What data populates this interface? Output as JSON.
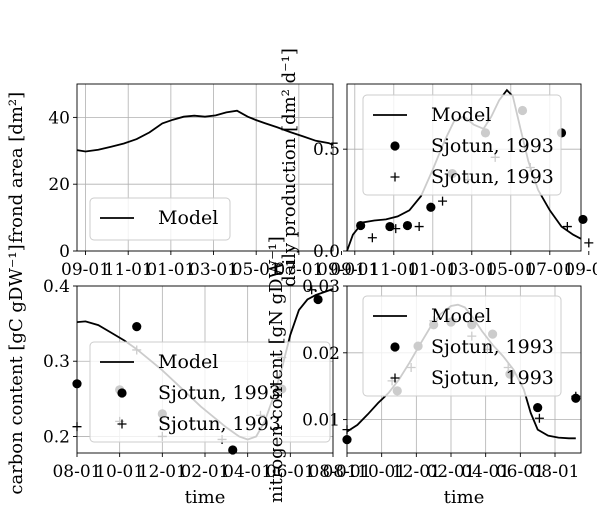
{
  "chart_data": [
    {
      "type": "line",
      "ylabel": "frond area [dm²]",
      "xlabel": "",
      "ylim": [
        0,
        50
      ],
      "yticks": [
        "0",
        "20",
        "40"
      ],
      "yticks_values": [
        0,
        20,
        40
      ],
      "xticks": [
        "09-01",
        "11-01",
        "01-01",
        "03-01",
        "05-01",
        "07-01",
        "09-01"
      ],
      "xlim": [
        0,
        12
      ],
      "xticks_values": [
        0.4,
        2.4,
        4.4,
        6.4,
        8.4,
        10.4,
        12.4
      ],
      "grid": true,
      "legend": {
        "placement": "lower-left",
        "entries": [
          "Model"
        ]
      },
      "series": [
        {
          "name": "Model",
          "style": "line",
          "x": [
            0,
            0.4,
            1,
            1.6,
            2.2,
            2.8,
            3.4,
            4,
            4.5,
            5,
            5.5,
            6,
            6.5,
            7,
            7.5,
            8,
            8.4,
            8.8,
            9.4,
            10,
            10.6,
            11.2,
            11.8,
            12
          ],
          "y": [
            30.2,
            29.8,
            30.3,
            31.2,
            32.2,
            33.5,
            35.5,
            38.2,
            39.3,
            40.2,
            40.5,
            40.2,
            40.6,
            41.5,
            42.0,
            40.2,
            39.2,
            38.3,
            37.0,
            35.6,
            34.3,
            33.0,
            32.3,
            31.8
          ]
        }
      ]
    },
    {
      "type": "scatter",
      "ylabel": "daily production [dm² d⁻¹]",
      "xlabel": "",
      "ylim": [
        0,
        0.82
      ],
      "yticks": [
        "0.0",
        "0.5"
      ],
      "yticks_values": [
        0,
        0.5
      ],
      "xticks": [
        "09-01",
        "11-01",
        "01-01",
        "03-01",
        "05-01",
        "07-01",
        "09-01"
      ],
      "xlim": [
        0,
        12
      ],
      "xticks_values": [
        0.4,
        2.4,
        4.4,
        6.4,
        8.4,
        10.4,
        12.4
      ],
      "grid": true,
      "legend": {
        "placement": "upper-left",
        "entries": [
          "Model",
          "Sjotun, 1993",
          "Sjotun, 1993"
        ]
      },
      "series": [
        {
          "name": "Model",
          "style": "line",
          "x": [
            0,
            0.3,
            0.8,
            1.4,
            2,
            2.6,
            3.2,
            3.8,
            4.4,
            5,
            5.5,
            6,
            6.5,
            7,
            7.4,
            7.8,
            8.2,
            8.5,
            8.9,
            9.3,
            9.8,
            10.4,
            11,
            11.6,
            12
          ],
          "y": [
            0.0,
            0.08,
            0.14,
            0.15,
            0.155,
            0.17,
            0.2,
            0.27,
            0.4,
            0.54,
            0.64,
            0.66,
            0.62,
            0.6,
            0.66,
            0.74,
            0.79,
            0.76,
            0.6,
            0.44,
            0.3,
            0.2,
            0.12,
            0.08,
            0.06
          ]
        },
        {
          "name": "Sjotun, 1993",
          "style": "dot",
          "x": [
            0.7,
            2.2,
            3.1,
            4.3,
            5.4,
            7.1,
            9.0,
            11.0,
            12.1
          ],
          "y": [
            0.125,
            0.12,
            0.125,
            0.215,
            0.38,
            0.58,
            0.69,
            0.58,
            0.155
          ]
        },
        {
          "name": "Sjotun, 1993",
          "style": "plus",
          "x": [
            1.3,
            2.5,
            3.7,
            4.9,
            6.2,
            7.6,
            9.4,
            11.3,
            12.4
          ],
          "y": [
            0.065,
            0.11,
            0.12,
            0.245,
            0.35,
            0.46,
            0.41,
            0.12,
            0.04
          ]
        }
      ]
    },
    {
      "type": "scatter",
      "ylabel": "carbon content [gC gDW⁻¹]",
      "xlabel": "time",
      "ylim": [
        0.178,
        0.4
      ],
      "yticks": [
        "0.2",
        "0.3",
        "0.4"
      ],
      "yticks_values": [
        0.2,
        0.3,
        0.4
      ],
      "xticks": [
        "08-01",
        "10-01",
        "12-01",
        "02-01",
        "04-01",
        "06-01",
        "08-01"
      ],
      "xlim": [
        0,
        12
      ],
      "xticks_values": [
        0,
        2,
        4,
        6,
        8,
        10,
        12
      ],
      "grid": true,
      "legend": {
        "placement": "center-right",
        "entries": [
          "Model",
          "Sjotun, 1993",
          "Sjotun, 1993"
        ]
      },
      "series": [
        {
          "name": "Model",
          "style": "line",
          "x": [
            0,
            0.4,
            1,
            1.6,
            2.2,
            2.8,
            3.4,
            4,
            4.6,
            5.2,
            5.8,
            6.4,
            7,
            7.6,
            8,
            8.4,
            8.8,
            9.2,
            9.6,
            10,
            10.4,
            10.8,
            11.2,
            11.6,
            12
          ],
          "y": [
            0.352,
            0.353,
            0.348,
            0.338,
            0.328,
            0.316,
            0.302,
            0.288,
            0.272,
            0.256,
            0.24,
            0.226,
            0.212,
            0.2,
            0.196,
            0.2,
            0.22,
            0.252,
            0.29,
            0.335,
            0.368,
            0.382,
            0.388,
            0.392,
            0.396
          ]
        },
        {
          "name": "Sjotun, 1993",
          "style": "dot",
          "x": [
            0,
            2,
            2.8,
            4.0,
            7.3,
            9.6,
            11.3
          ],
          "y": [
            0.27,
            0.262,
            0.346,
            0.23,
            0.182,
            0.263,
            0.382
          ]
        },
        {
          "name": "Sjotun, 1993",
          "style": "plus",
          "x": [
            0,
            2.0,
            2.8,
            4.0,
            6.8,
            8.6,
            9.6,
            11.0
          ],
          "y": [
            0.213,
            0.22,
            0.315,
            0.2,
            0.196,
            0.228,
            0.305,
            0.395
          ]
        }
      ]
    },
    {
      "type": "scatter",
      "ylabel": "nitrogen content [gN gDW⁻¹]",
      "xlabel": "time",
      "ylim": [
        0.005,
        0.03
      ],
      "yticks": [
        "0.01",
        "0.02",
        "0.03"
      ],
      "yticks_values": [
        0.01,
        0.02,
        0.03
      ],
      "xticks": [
        "08-01",
        "10-01",
        "12-01",
        "02-01",
        "04-01",
        "06-01",
        "08-01"
      ],
      "xlim": [
        0,
        13.5
      ],
      "xticks_values": [
        0,
        2,
        4,
        6,
        8,
        10,
        12
      ],
      "grid": true,
      "legend": {
        "placement": "upper-left",
        "entries": [
          "Model",
          "Sjotun, 1993",
          "Sjotun, 1993"
        ]
      },
      "series": [
        {
          "name": "Model",
          "style": "line",
          "x": [
            0,
            0.6,
            1.2,
            1.8,
            2.4,
            3,
            3.6,
            4.2,
            4.8,
            5.4,
            6,
            6.4,
            6.8,
            7.2,
            7.8,
            8.4,
            9,
            9.6,
            10.2,
            10.6,
            11,
            11.6,
            12.2,
            12.8,
            13.2
          ],
          "y": [
            0.0082,
            0.0092,
            0.0108,
            0.0125,
            0.014,
            0.016,
            0.0185,
            0.0212,
            0.0238,
            0.0258,
            0.027,
            0.0272,
            0.0268,
            0.0255,
            0.0232,
            0.0212,
            0.0195,
            0.0175,
            0.0145,
            0.011,
            0.0085,
            0.0076,
            0.0073,
            0.0072,
            0.0072
          ]
        },
        {
          "name": "Sjotun, 1993",
          "style": "dot",
          "x": [
            0,
            2.9,
            4.1,
            5.0,
            6.0,
            7.2,
            8.4,
            9.4,
            11.0,
            13.2
          ],
          "y": [
            0.007,
            0.0143,
            0.021,
            0.0242,
            0.0246,
            0.0242,
            0.0228,
            0.0168,
            0.0118,
            0.0132
          ]
        },
        {
          "name": "Sjotun, 1993",
          "style": "plus",
          "x": [
            0,
            2.6,
            3.7,
            5.0,
            6.1,
            7.2,
            8.1,
            9.3,
            11.1,
            13.2
          ],
          "y": [
            0.0085,
            0.0158,
            0.0178,
            0.0248,
            0.025,
            0.0225,
            0.0205,
            0.0178,
            0.0102,
            0.0135
          ]
        }
      ]
    }
  ]
}
